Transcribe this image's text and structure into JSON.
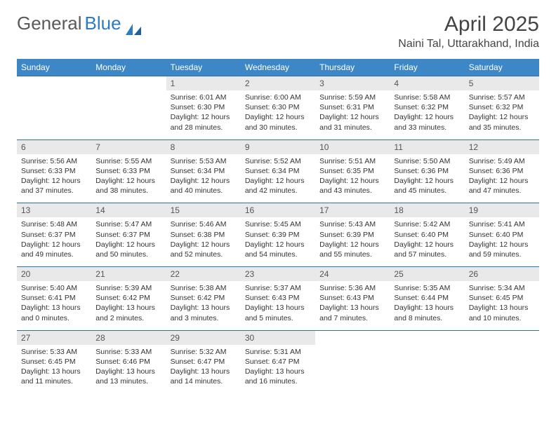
{
  "brand": {
    "part1": "General",
    "part2": "Blue"
  },
  "title": "April 2025",
  "location": "Naini Tal, Uttarakhand, India",
  "colors": {
    "header_bg": "#3d87c7",
    "header_text": "#ffffff",
    "row_border": "#2f6fa8",
    "daynum_bg": "#e9e9e9",
    "brand_gray": "#5a5a5a",
    "brand_blue": "#2f7bbf"
  },
  "day_names": [
    "Sunday",
    "Monday",
    "Tuesday",
    "Wednesday",
    "Thursday",
    "Friday",
    "Saturday"
  ],
  "weeks": [
    [
      {
        "n": "",
        "sr": "",
        "ss": "",
        "dl": ""
      },
      {
        "n": "",
        "sr": "",
        "ss": "",
        "dl": ""
      },
      {
        "n": "1",
        "sr": "Sunrise: 6:01 AM",
        "ss": "Sunset: 6:30 PM",
        "dl": "Daylight: 12 hours and 28 minutes."
      },
      {
        "n": "2",
        "sr": "Sunrise: 6:00 AM",
        "ss": "Sunset: 6:30 PM",
        "dl": "Daylight: 12 hours and 30 minutes."
      },
      {
        "n": "3",
        "sr": "Sunrise: 5:59 AM",
        "ss": "Sunset: 6:31 PM",
        "dl": "Daylight: 12 hours and 31 minutes."
      },
      {
        "n": "4",
        "sr": "Sunrise: 5:58 AM",
        "ss": "Sunset: 6:32 PM",
        "dl": "Daylight: 12 hours and 33 minutes."
      },
      {
        "n": "5",
        "sr": "Sunrise: 5:57 AM",
        "ss": "Sunset: 6:32 PM",
        "dl": "Daylight: 12 hours and 35 minutes."
      }
    ],
    [
      {
        "n": "6",
        "sr": "Sunrise: 5:56 AM",
        "ss": "Sunset: 6:33 PM",
        "dl": "Daylight: 12 hours and 37 minutes."
      },
      {
        "n": "7",
        "sr": "Sunrise: 5:55 AM",
        "ss": "Sunset: 6:33 PM",
        "dl": "Daylight: 12 hours and 38 minutes."
      },
      {
        "n": "8",
        "sr": "Sunrise: 5:53 AM",
        "ss": "Sunset: 6:34 PM",
        "dl": "Daylight: 12 hours and 40 minutes."
      },
      {
        "n": "9",
        "sr": "Sunrise: 5:52 AM",
        "ss": "Sunset: 6:34 PM",
        "dl": "Daylight: 12 hours and 42 minutes."
      },
      {
        "n": "10",
        "sr": "Sunrise: 5:51 AM",
        "ss": "Sunset: 6:35 PM",
        "dl": "Daylight: 12 hours and 43 minutes."
      },
      {
        "n": "11",
        "sr": "Sunrise: 5:50 AM",
        "ss": "Sunset: 6:36 PM",
        "dl": "Daylight: 12 hours and 45 minutes."
      },
      {
        "n": "12",
        "sr": "Sunrise: 5:49 AM",
        "ss": "Sunset: 6:36 PM",
        "dl": "Daylight: 12 hours and 47 minutes."
      }
    ],
    [
      {
        "n": "13",
        "sr": "Sunrise: 5:48 AM",
        "ss": "Sunset: 6:37 PM",
        "dl": "Daylight: 12 hours and 49 minutes."
      },
      {
        "n": "14",
        "sr": "Sunrise: 5:47 AM",
        "ss": "Sunset: 6:37 PM",
        "dl": "Daylight: 12 hours and 50 minutes."
      },
      {
        "n": "15",
        "sr": "Sunrise: 5:46 AM",
        "ss": "Sunset: 6:38 PM",
        "dl": "Daylight: 12 hours and 52 minutes."
      },
      {
        "n": "16",
        "sr": "Sunrise: 5:45 AM",
        "ss": "Sunset: 6:39 PM",
        "dl": "Daylight: 12 hours and 54 minutes."
      },
      {
        "n": "17",
        "sr": "Sunrise: 5:43 AM",
        "ss": "Sunset: 6:39 PM",
        "dl": "Daylight: 12 hours and 55 minutes."
      },
      {
        "n": "18",
        "sr": "Sunrise: 5:42 AM",
        "ss": "Sunset: 6:40 PM",
        "dl": "Daylight: 12 hours and 57 minutes."
      },
      {
        "n": "19",
        "sr": "Sunrise: 5:41 AM",
        "ss": "Sunset: 6:40 PM",
        "dl": "Daylight: 12 hours and 59 minutes."
      }
    ],
    [
      {
        "n": "20",
        "sr": "Sunrise: 5:40 AM",
        "ss": "Sunset: 6:41 PM",
        "dl": "Daylight: 13 hours and 0 minutes."
      },
      {
        "n": "21",
        "sr": "Sunrise: 5:39 AM",
        "ss": "Sunset: 6:42 PM",
        "dl": "Daylight: 13 hours and 2 minutes."
      },
      {
        "n": "22",
        "sr": "Sunrise: 5:38 AM",
        "ss": "Sunset: 6:42 PM",
        "dl": "Daylight: 13 hours and 3 minutes."
      },
      {
        "n": "23",
        "sr": "Sunrise: 5:37 AM",
        "ss": "Sunset: 6:43 PM",
        "dl": "Daylight: 13 hours and 5 minutes."
      },
      {
        "n": "24",
        "sr": "Sunrise: 5:36 AM",
        "ss": "Sunset: 6:43 PM",
        "dl": "Daylight: 13 hours and 7 minutes."
      },
      {
        "n": "25",
        "sr": "Sunrise: 5:35 AM",
        "ss": "Sunset: 6:44 PM",
        "dl": "Daylight: 13 hours and 8 minutes."
      },
      {
        "n": "26",
        "sr": "Sunrise: 5:34 AM",
        "ss": "Sunset: 6:45 PM",
        "dl": "Daylight: 13 hours and 10 minutes."
      }
    ],
    [
      {
        "n": "27",
        "sr": "Sunrise: 5:33 AM",
        "ss": "Sunset: 6:45 PM",
        "dl": "Daylight: 13 hours and 11 minutes."
      },
      {
        "n": "28",
        "sr": "Sunrise: 5:33 AM",
        "ss": "Sunset: 6:46 PM",
        "dl": "Daylight: 13 hours and 13 minutes."
      },
      {
        "n": "29",
        "sr": "Sunrise: 5:32 AM",
        "ss": "Sunset: 6:47 PM",
        "dl": "Daylight: 13 hours and 14 minutes."
      },
      {
        "n": "30",
        "sr": "Sunrise: 5:31 AM",
        "ss": "Sunset: 6:47 PM",
        "dl": "Daylight: 13 hours and 16 minutes."
      },
      {
        "n": "",
        "sr": "",
        "ss": "",
        "dl": ""
      },
      {
        "n": "",
        "sr": "",
        "ss": "",
        "dl": ""
      },
      {
        "n": "",
        "sr": "",
        "ss": "",
        "dl": ""
      }
    ]
  ]
}
